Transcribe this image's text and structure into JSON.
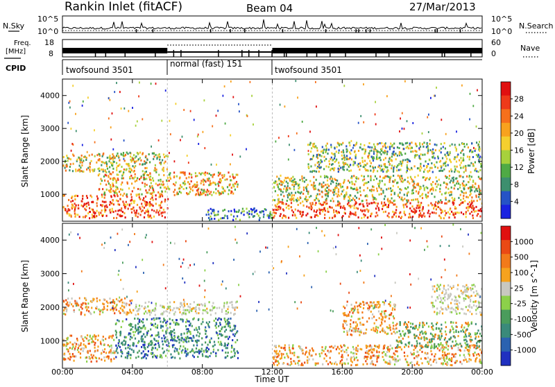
{
  "header": {
    "station": "Rankin Inlet (fitACF)",
    "beam": "Beam 04",
    "date": "27/Mar/2013"
  },
  "noise_panel": {
    "left_label": "N.Sky",
    "left_ticks": [
      "10^5",
      "10^0"
    ],
    "right_label": "N.Search",
    "right_ticks": [
      "10^5",
      "10^0"
    ]
  },
  "freq_panel": {
    "left_label_1": "Freq.",
    "left_label_2": "[MHz]",
    "left_ticks": [
      "18",
      "8"
    ],
    "right_label": "Nave",
    "right_ticks": [
      "60",
      "0"
    ]
  },
  "cpid_panel": {
    "label": "CPID",
    "segments": [
      {
        "name": "twofsound 3501",
        "start_h": 0,
        "end_h": 6
      },
      {
        "name": "normal (fast) 151",
        "start_h": 6,
        "end_h": 12
      },
      {
        "name": "twofsound 3501",
        "start_h": 12,
        "end_h": 24
      }
    ]
  },
  "chart_data": [
    {
      "type": "heatmap",
      "title": "",
      "ylabel": "Slant Range [km]",
      "xlabel": "Time UT",
      "x_ticks": [
        "00:00",
        "04:00",
        "08:00",
        "12:00",
        "16:00",
        "20:00",
        "00:00"
      ],
      "xlim": [
        0,
        24
      ],
      "ylim": [
        180,
        4500
      ],
      "y_ticks": [
        1000,
        2000,
        3000,
        4000
      ],
      "colorbar": {
        "label": "Power [dB]",
        "ticks": [
          "4",
          "8",
          "12",
          "16",
          "20",
          "24",
          "28"
        ],
        "colors": [
          "#1a22e0",
          "#2653c6",
          "#3d8f6e",
          "#4faa45",
          "#a7d13c",
          "#f5cf2e",
          "#f8a21e",
          "#f6701c",
          "#ee3a1a",
          "#e01010"
        ]
      },
      "regions": [
        {
          "t": [
            0,
            6
          ],
          "r": [
            300,
            1000
          ],
          "level": "high"
        },
        {
          "t": [
            2,
            10
          ],
          "r": [
            1000,
            1700
          ],
          "level": "mid-high"
        },
        {
          "t": [
            0,
            6
          ],
          "r": [
            1700,
            2300
          ],
          "level": "mid"
        },
        {
          "t": [
            8,
            12
          ],
          "r": [
            250,
            600
          ],
          "level": "low"
        },
        {
          "t": [
            12,
            24
          ],
          "r": [
            300,
            800
          ],
          "level": "high"
        },
        {
          "t": [
            12,
            24
          ],
          "r": [
            800,
            1600
          ],
          "level": "mid"
        },
        {
          "t": [
            14,
            24
          ],
          "r": [
            1700,
            2600
          ],
          "level": "low-mid"
        }
      ]
    },
    {
      "type": "heatmap",
      "title": "",
      "ylabel": "Slant Range [km]",
      "xlabel": "Time UT",
      "x_ticks": [
        "00:00",
        "04:00",
        "08:00",
        "12:00",
        "16:00",
        "20:00",
        "00:00"
      ],
      "xlim": [
        0,
        24
      ],
      "ylim": [
        180,
        4500
      ],
      "y_ticks": [
        1000,
        2000,
        3000,
        4000
      ],
      "colorbar": {
        "label": "Velocity [m s^-1]",
        "ticks": [
          "1000",
          "500",
          "100",
          "25",
          "-25",
          "-100",
          "-500",
          "-1000"
        ],
        "colors": [
          "#2030c0",
          "#2b62b0",
          "#3a8a7a",
          "#4a9c5c",
          "#8cd04a",
          "#c8c8c0",
          "#f5a21e",
          "#f27a1a",
          "#ea4a14",
          "#e01010"
        ]
      },
      "regions": [
        {
          "t": [
            0,
            3
          ],
          "r": [
            400,
            1200
          ],
          "level": "orange"
        },
        {
          "t": [
            3,
            10
          ],
          "r": [
            500,
            1700
          ],
          "level": "green-blue"
        },
        {
          "t": [
            0,
            4
          ],
          "r": [
            1800,
            2300
          ],
          "level": "orange"
        },
        {
          "t": [
            4,
            10
          ],
          "r": [
            1800,
            2200
          ],
          "level": "gray"
        },
        {
          "t": [
            12,
            24
          ],
          "r": [
            300,
            900
          ],
          "level": "orange"
        },
        {
          "t": [
            16,
            19
          ],
          "r": [
            1200,
            2200
          ],
          "level": "orange"
        },
        {
          "t": [
            19,
            24
          ],
          "r": [
            800,
            1600
          ],
          "level": "green"
        },
        {
          "t": [
            21,
            24
          ],
          "r": [
            1800,
            2700
          ],
          "level": "gray"
        }
      ]
    }
  ]
}
